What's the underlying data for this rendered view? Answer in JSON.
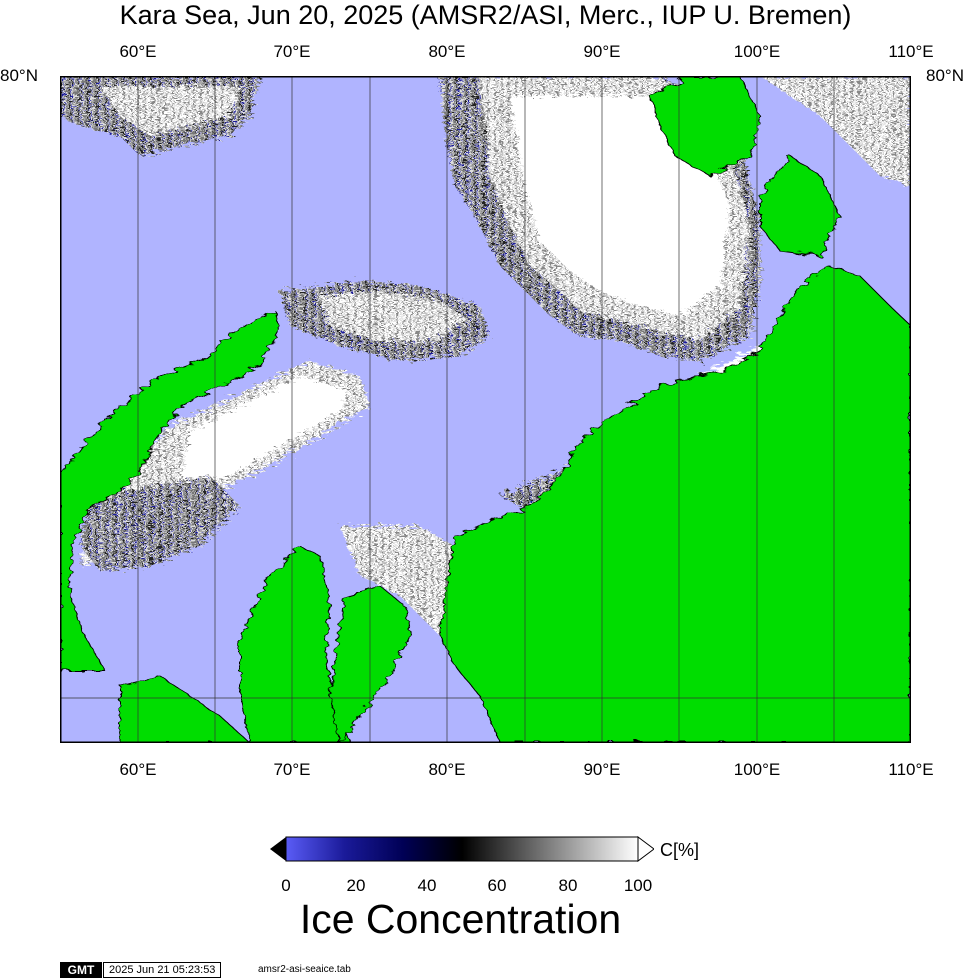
{
  "title": "Kara Sea, Jun 20, 2025 (AMSR2/ASI, Merc., IUP U. Bremen)",
  "top_lon_labels": [
    "60°E",
    "70°E",
    "80°E",
    "90°E",
    "100°E",
    "110°E"
  ],
  "bottom_lon_labels": [
    "60°E",
    "70°E",
    "80°E",
    "90°E",
    "100°E",
    "110°E"
  ],
  "lat_label_left": "80°N",
  "lat_label_right": "80°N",
  "colors": {
    "land": "#00dd00",
    "open_water": "#b0b4ff",
    "ice_full": "#ffffff",
    "ice_low": "#000066",
    "grid": "#333333"
  },
  "colorbar": {
    "ticks": [
      "0",
      "20",
      "40",
      "60",
      "80",
      "100"
    ],
    "unit": "C[%]",
    "title": "Ice Concentration",
    "stops": [
      "#5a5cf6",
      "#1a1a99",
      "#000055",
      "#000000",
      "#555555",
      "#aaaaaa",
      "#ffffff"
    ]
  },
  "footer": {
    "logo": "GMT",
    "timestamp": "2025 Jun 21 05:23:53",
    "source": "amsr2-asi-seaice.tab"
  }
}
